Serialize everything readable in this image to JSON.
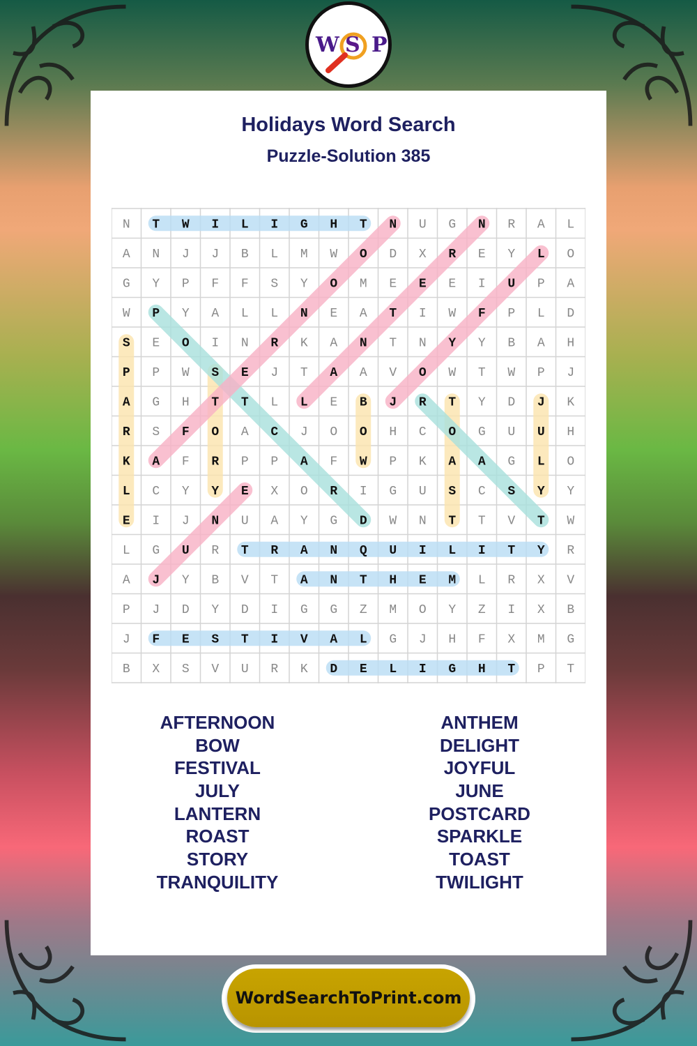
{
  "title": "Holidays Word Search",
  "subtitle": "Puzzle-Solution 385",
  "logo": {
    "letters": [
      "W",
      "S",
      "P"
    ]
  },
  "footer": {
    "site": "WordSearchToPrint.com"
  },
  "colors": {
    "background_top": "#155a45",
    "panel": "#ffffff",
    "text": "#1e2060",
    "footer": "#c8a400",
    "highlight_blue": "#b8dcf4",
    "highlight_pink": "#f8b0c4",
    "highlight_yellow": "#fbe4ac",
    "highlight_teal": "#a8e0dc"
  },
  "grid": [
    "NTWILIGHTNUGNRAL",
    "ANJJBLMWODXREYLO",
    "GYPFFSYOMEEEIUPA",
    "WPYALLNEATIWFPLD",
    "SEOINRKANTNYYBAH",
    "PPWSEJTAAVOWTWPJ",
    "AGHTTLLEBJRTYDJK",
    "RSFOACJOOHCOGUUH",
    "KAFRPPAFWPKAAGLO",
    "LCYYEXORIGUSCSYY",
    "EIJNUAYGDWNTTVTW",
    "LGURTRANQUILITYR",
    "AJYBVTANTHEMLRXV",
    "PJDYDIGGZMOYZIXB",
    "JFESTIVALGJHFXMG",
    "BXSVURKDELIGHTPT"
  ],
  "solution": [
    {
      "word": "TWILIGHT",
      "from": [
        0,
        1
      ],
      "to": [
        0,
        8
      ],
      "color": "blue"
    },
    {
      "word": "TRANQUILITY",
      "from": [
        11,
        4
      ],
      "to": [
        11,
        14
      ],
      "color": "blue"
    },
    {
      "word": "ANTHEM",
      "from": [
        12,
        6
      ],
      "to": [
        12,
        11
      ],
      "color": "blue"
    },
    {
      "word": "FESTIVAL",
      "from": [
        14,
        1
      ],
      "to": [
        14,
        8
      ],
      "color": "blue"
    },
    {
      "word": "DELIGHT",
      "from": [
        15,
        7
      ],
      "to": [
        15,
        13
      ],
      "color": "blue"
    },
    {
      "word": "SPARKLE",
      "from": [
        4,
        0
      ],
      "to": [
        10,
        0
      ],
      "color": "yellow"
    },
    {
      "word": "STORY",
      "from": [
        5,
        3
      ],
      "to": [
        9,
        3
      ],
      "color": "yellow"
    },
    {
      "word": "BOW",
      "from": [
        6,
        8
      ],
      "to": [
        8,
        8
      ],
      "color": "yellow"
    },
    {
      "word": "TOAST",
      "from": [
        6,
        11
      ],
      "to": [
        10,
        11
      ],
      "color": "yellow"
    },
    {
      "word": "JULY",
      "from": [
        6,
        14
      ],
      "to": [
        9,
        14
      ],
      "color": "yellow"
    },
    {
      "word": "POSTCARD",
      "from": [
        3,
        1
      ],
      "to": [
        10,
        8
      ],
      "color": "teal"
    },
    {
      "word": "ROAST",
      "from": [
        6,
        10
      ],
      "to": [
        10,
        14
      ],
      "color": "teal"
    },
    {
      "word": "AFTERNOON",
      "from": [
        8,
        1
      ],
      "to": [
        0,
        9
      ],
      "color": "pink"
    },
    {
      "word": "LANTERN",
      "from": [
        6,
        6
      ],
      "to": [
        0,
        12
      ],
      "color": "pink"
    },
    {
      "word": "JOYFUL",
      "from": [
        6,
        9
      ],
      "to": [
        1,
        14
      ],
      "color": "pink"
    },
    {
      "word": "JUNE",
      "from": [
        12,
        1
      ],
      "to": [
        9,
        4
      ],
      "color": "pink"
    }
  ],
  "word_list": {
    "left": [
      "AFTERNOON",
      "BOW",
      "FESTIVAL",
      "JULY",
      "LANTERN",
      "ROAST",
      "STORY",
      "TRANQUILITY"
    ],
    "right": [
      "ANTHEM",
      "DELIGHT",
      "JOYFUL",
      "JUNE",
      "POSTCARD",
      "SPARKLE",
      "TOAST",
      "TWILIGHT"
    ]
  }
}
